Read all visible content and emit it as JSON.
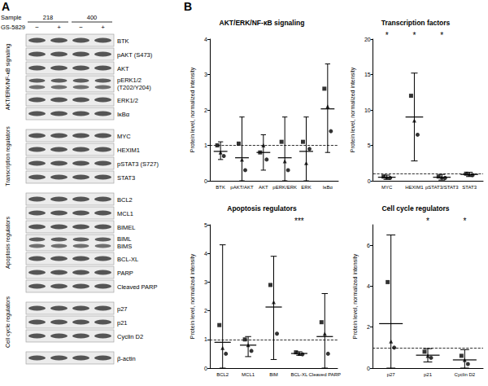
{
  "panel_a": {
    "label": "A",
    "sample_label": "Sample",
    "samples": [
      "218",
      "400"
    ],
    "treatment_label": "GS-5829",
    "treatments": [
      "−",
      "+",
      "−",
      "+"
    ],
    "groups": [
      {
        "name": "AKT/ERK/NF-κB signaling",
        "bands": [
          "BTK",
          "pAKT (S473)",
          "AKT",
          "pERK1/2\n(T202/Y204)",
          "ERK1/2",
          "IκBα"
        ]
      },
      {
        "name": "Transcription regulators",
        "bands": [
          "MYC",
          "HEXIM1",
          "pSTAT3 (S727)",
          "STAT3"
        ]
      },
      {
        "name": "Apoptosis regulators",
        "bands": [
          "BCL2",
          "MCL1",
          "BIMEL",
          "BIML\nBIMS",
          "BCL-XL",
          "PARP",
          "Cleaved PARP"
        ]
      },
      {
        "name": "Cell cycle regulators",
        "bands": [
          "p27",
          "p21",
          "Cyclin D2"
        ]
      }
    ],
    "loading_control": "β-actin"
  },
  "panel_b_label": "B",
  "chart_data": [
    {
      "type": "scatter",
      "title": "AKT/ERK/NF-κB signaling",
      "y_label": "Protein level, normalized intensity",
      "categories": [
        "BTK",
        "pAKT/AKT",
        "AKT",
        "pERK/ERK",
        "ERK",
        "IκBα"
      ],
      "series": [
        {
          "marker": "square",
          "values": [
            1.0,
            1.05,
            0.8,
            1.1,
            1.1,
            2.6
          ]
        },
        {
          "marker": "triangle",
          "values": [
            0.8,
            0.6,
            1.0,
            0.55,
            0.5,
            2.1
          ]
        },
        {
          "marker": "circle",
          "values": [
            0.7,
            0.3,
            0.6,
            0.3,
            0.9,
            1.4
          ]
        }
      ],
      "means": [
        0.83,
        0.65,
        0.8,
        0.65,
        0.83,
        2.03
      ],
      "error_low": [
        0.6,
        0,
        0.3,
        0,
        0,
        0.8
      ],
      "error_high": [
        1.1,
        1.8,
        1.3,
        1.8,
        1.8,
        3.3
      ],
      "reference_line": 1,
      "annotations": [],
      "ylim": [
        0,
        4
      ],
      "yticks": [
        0,
        1,
        2,
        3,
        4
      ],
      "grid": false
    },
    {
      "type": "scatter",
      "title": "Transcription factors",
      "y_label": "Protein level, normalized intensity",
      "categories": [
        "MYC",
        "HEXIM1",
        "pSTAT3/STAT3",
        "STAT3"
      ],
      "series": [
        {
          "marker": "square",
          "values": [
            0.6,
            12,
            0.6,
            1.0
          ]
        },
        {
          "marker": "triangle",
          "values": [
            0.5,
            8.5,
            0.5,
            0.9
          ]
        },
        {
          "marker": "circle",
          "values": [
            0.4,
            6.5,
            0.4,
            0.8
          ]
        }
      ],
      "means": [
        0.5,
        9,
        0.5,
        0.9
      ],
      "error_low": [
        0.2,
        2.8,
        0.1,
        0.6
      ],
      "error_high": [
        0.8,
        15.2,
        0.9,
        1.2
      ],
      "reference_line": 1,
      "annotations": [
        {
          "category": "MYC",
          "text": "*"
        },
        {
          "category": "HEXIM1",
          "text": "*"
        },
        {
          "category": "pSTAT3/STAT3",
          "text": "*"
        }
      ],
      "ylim": [
        0,
        20
      ],
      "yticks": [
        0,
        5,
        10,
        15,
        20
      ],
      "grid": false
    },
    {
      "type": "scatter",
      "title": "Apoptosis regulators",
      "y_label": "Protein level, normalized intensity",
      "categories": [
        "BCL2",
        "MCL1",
        "BIM",
        "BCL-XL",
        "Cleaved PARP"
      ],
      "series": [
        {
          "marker": "square",
          "values": [
            1.5,
            1.0,
            2.9,
            0.55,
            1.6
          ]
        },
        {
          "marker": "triangle",
          "values": [
            0.7,
            0.8,
            2.3,
            0.5,
            1.2
          ]
        },
        {
          "marker": "circle",
          "values": [
            0.5,
            0.6,
            1.2,
            0.48,
            0.5
          ]
        }
      ],
      "means": [
        0.9,
        0.8,
        2.13,
        0.51,
        1.1
      ],
      "error_low": [
        0,
        0.4,
        0.3,
        0.45,
        0
      ],
      "error_high": [
        4.3,
        1.1,
        3.9,
        0.57,
        2.6
      ],
      "reference_line": 1,
      "annotations": [
        {
          "category": "BCL-XL",
          "text": "***"
        }
      ],
      "ylim": [
        0,
        5
      ],
      "yticks": [
        0,
        1,
        2,
        3,
        4,
        5
      ],
      "grid": false
    },
    {
      "type": "scatter",
      "title": "Cell cycle regulators",
      "y_label": "Protein level, normalized intensity",
      "categories": [
        "p27",
        "p21",
        "Cyclin D2"
      ],
      "series": [
        {
          "marker": "square",
          "values": [
            4.2,
            0.8,
            0.6
          ]
        },
        {
          "marker": "triangle",
          "values": [
            1.3,
            0.6,
            0.4
          ]
        },
        {
          "marker": "circle",
          "values": [
            1.0,
            0.5,
            0.2
          ]
        }
      ],
      "means": [
        2.17,
        0.63,
        0.4
      ],
      "error_low": [
        0,
        0.3,
        0
      ],
      "error_high": [
        6.5,
        0.95,
        0.9
      ],
      "reference_line": 1,
      "annotations": [
        {
          "category": "p21",
          "text": "*"
        },
        {
          "category": "Cyclin D2",
          "text": "*"
        }
      ],
      "ylim": [
        0,
        7
      ],
      "yticks": [
        0,
        2,
        4,
        6
      ],
      "grid": false
    }
  ]
}
